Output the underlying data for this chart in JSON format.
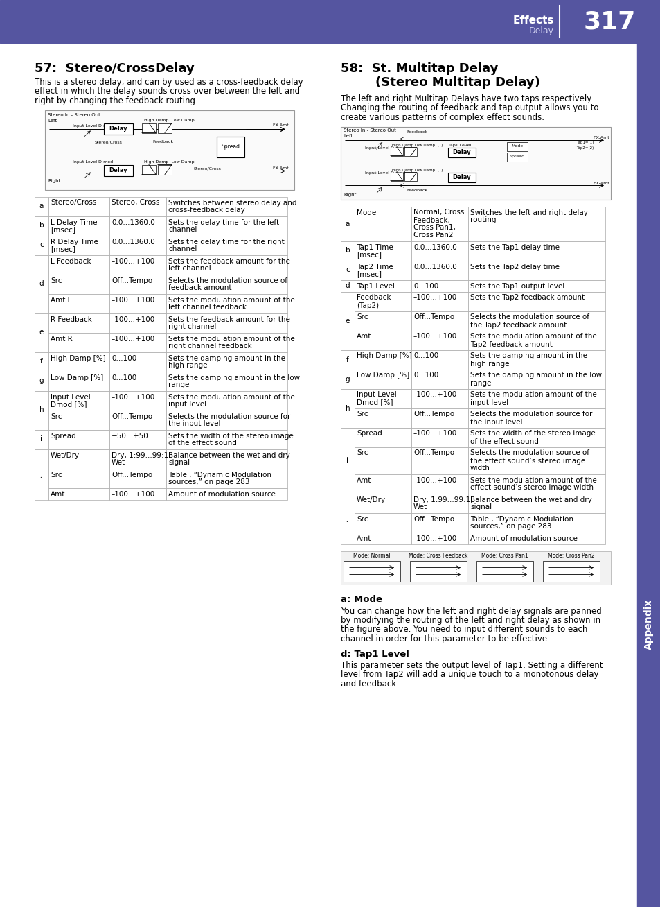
{
  "page_number": "317",
  "header_text": "Effects",
  "header_subtext": "Delay",
  "header_bg": "#5555a0",
  "title1": "57:  Stereo/CrossDelay",
  "desc1_lines": [
    "This is a stereo delay, and can by used as a cross-feedback delay",
    "effect in which the delay sounds cross over between the left and",
    "right by changing the feedback routing."
  ],
  "title2_line1": "58:  St. Multitap Delay",
  "title2_line2": "        (Stereo Multitap Delay)",
  "desc2_lines": [
    "The left and right Multitap Delays have two taps respectively.",
    "Changing the routing of feedback and tap output allows you to",
    "create various patterns of complex effect sounds."
  ],
  "table1_rows": [
    [
      "a",
      "Stereo/Cross",
      "Stereo, Cross",
      "Switches between stereo delay and\ncross-feedback delay"
    ],
    [
      "b",
      "L Delay Time\n[msec]",
      "0.0...1360.0",
      "Sets the delay time for the left\nchannel"
    ],
    [
      "c",
      "R Delay Time\n[msec]",
      "0.0...1360.0",
      "Sets the delay time for the right\nchannel"
    ],
    [
      "d",
      "L Feedback",
      "–100...+100",
      "Sets the feedback amount for the\nleft channel"
    ],
    [
      "d",
      "Src",
      "Off...Tempo",
      "Selects the modulation source of\nfeedback amount"
    ],
    [
      "d",
      "Amt L",
      "–100...+100",
      "Sets the modulation amount of the\nleft channel feedback"
    ],
    [
      "e",
      "R Feedback",
      "–100...+100",
      "Sets the feedback amount for the\nright channel"
    ],
    [
      "e",
      "Amt R",
      "–100...+100",
      "Sets the modulation amount of the\nright channel feedback"
    ],
    [
      "f",
      "High Damp [%]",
      "0...100",
      "Sets the damping amount in the\nhigh range"
    ],
    [
      "g",
      "Low Damp [%]",
      "0...100",
      "Sets the damping amount in the low\nrange"
    ],
    [
      "h",
      "Input Level\nDmod [%]",
      "–100...+100",
      "Sets the modulation amount of the\ninput level"
    ],
    [
      "h",
      "Src",
      "Off...Tempo",
      "Selects the modulation source for\nthe input level"
    ],
    [
      "i",
      "Spread",
      "−50...+50",
      "Sets the width of the stereo image\nof the effect sound"
    ],
    [
      "j",
      "Wet/Dry",
      "Dry, 1:99...99:1,\nWet",
      "Balance between the wet and dry\nsignal"
    ],
    [
      "j",
      "Src",
      "Off...Tempo",
      "Table , “Dynamic Modulation\nsources,” on page 283"
    ],
    [
      "j",
      "Amt",
      "–100...+100",
      "Amount of modulation source"
    ]
  ],
  "table2_rows": [
    [
      "a",
      "Mode",
      "Normal, Cross\nFeedback,\nCross Pan1,\nCross Pan2",
      "Switches the left and right delay\nrouting"
    ],
    [
      "b",
      "Tap1 Time\n[msec]",
      "0.0...1360.0",
      "Sets the Tap1 delay time"
    ],
    [
      "c",
      "Tap2 Time\n[msec]",
      "0.0...1360.0",
      "Sets the Tap2 delay time"
    ],
    [
      "d",
      "Tap1 Level",
      "0...100",
      "Sets the Tap1 output level"
    ],
    [
      "e",
      "Feedback\n(Tap2)",
      "–100...+100",
      "Sets the Tap2 feedback amount"
    ],
    [
      "e",
      "Src",
      "Off...Tempo",
      "Selects the modulation source of\nthe Tap2 feedback amount"
    ],
    [
      "e",
      "Amt",
      "–100...+100",
      "Sets the modulation amount of the\nTap2 feedback amount"
    ],
    [
      "f",
      "High Damp [%]",
      "0...100",
      "Sets the damping amount in the\nhigh range"
    ],
    [
      "g",
      "Low Damp [%]",
      "0...100",
      "Sets the damping amount in the low\nrange"
    ],
    [
      "h",
      "Input Level\nDmod [%]",
      "–100...+100",
      "Sets the modulation amount of the\ninput level"
    ],
    [
      "h",
      "Src",
      "Off...Tempo",
      "Selects the modulation source for\nthe input level"
    ],
    [
      "i",
      "Spread",
      "–100...+100",
      "Sets the width of the stereo image\nof the effect sound"
    ],
    [
      "i",
      "Src",
      "Off...Tempo",
      "Selects the modulation source of\nthe effect sound’s stereo image\nwidth"
    ],
    [
      "i",
      "Amt",
      "–100...+100",
      "Sets the modulation amount of the\neffect sound’s stereo image width"
    ],
    [
      "j",
      "Wet/Dry",
      "Dry, 1:99...99:1,\nWet",
      "Balance between the wet and dry\nsignal"
    ],
    [
      "j",
      "Src",
      "Off...Tempo",
      "Table , “Dynamic Modulation\nsources,” on page 283"
    ],
    [
      "j",
      "Amt",
      "–100...+100",
      "Amount of modulation source"
    ]
  ],
  "section_a_title": "a: Mode",
  "section_a_lines": [
    "You can change how the left and right delay signals are panned",
    "by modifying the routing of the left and right delay as shown in",
    "the figure above. You need to input different sounds to each",
    "channel in order for this parameter to be effective."
  ],
  "section_d_title": "d: Tap1 Level",
  "section_d_lines": [
    "This parameter sets the output level of Tap1. Setting a different",
    "level from Tap2 will add a unique touch to a monotonous delay",
    "and feedback."
  ]
}
